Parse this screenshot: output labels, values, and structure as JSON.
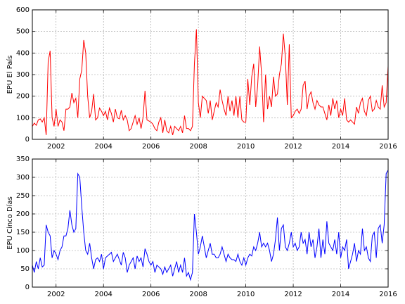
{
  "chart_data": [
    {
      "type": "line",
      "ylabel": "EPU El País",
      "xlim": [
        2001,
        2016
      ],
      "xticks": [
        2002,
        2004,
        2006,
        2008,
        2010,
        2012,
        2014,
        2016
      ],
      "ylim": [
        0,
        600
      ],
      "yticks": [
        0,
        100,
        200,
        300,
        400,
        500,
        600
      ],
      "grid": true,
      "x": [
        2001,
        2001.083,
        2001.167,
        2001.25,
        2001.333,
        2001.417,
        2001.5,
        2001.583,
        2001.667,
        2001.75,
        2001.833,
        2001.917,
        2002,
        2002.083,
        2002.167,
        2002.25,
        2002.333,
        2002.417,
        2002.5,
        2002.583,
        2002.667,
        2002.75,
        2002.833,
        2002.917,
        2003,
        2003.083,
        2003.167,
        2003.25,
        2003.333,
        2003.417,
        2003.5,
        2003.583,
        2003.667,
        2003.75,
        2003.833,
        2003.917,
        2004,
        2004.083,
        2004.167,
        2004.25,
        2004.333,
        2004.417,
        2004.5,
        2004.583,
        2004.667,
        2004.75,
        2004.833,
        2004.917,
        2005,
        2005.083,
        2005.167,
        2005.25,
        2005.333,
        2005.417,
        2005.5,
        2005.583,
        2005.667,
        2005.75,
        2005.833,
        2005.917,
        2006,
        2006.083,
        2006.167,
        2006.25,
        2006.333,
        2006.417,
        2006.5,
        2006.583,
        2006.667,
        2006.75,
        2006.833,
        2006.917,
        2007,
        2007.083,
        2007.167,
        2007.25,
        2007.333,
        2007.417,
        2007.5,
        2007.583,
        2007.667,
        2007.75,
        2007.833,
        2007.917,
        2008,
        2008.083,
        2008.167,
        2008.25,
        2008.333,
        2008.417,
        2008.5,
        2008.583,
        2008.667,
        2008.75,
        2008.833,
        2008.917,
        2009,
        2009.083,
        2009.167,
        2009.25,
        2009.333,
        2009.417,
        2009.5,
        2009.583,
        2009.667,
        2009.75,
        2009.833,
        2009.917,
        2010,
        2010.083,
        2010.167,
        2010.25,
        2010.333,
        2010.417,
        2010.5,
        2010.583,
        2010.667,
        2010.75,
        2010.833,
        2010.917,
        2011,
        2011.083,
        2011.167,
        2011.25,
        2011.333,
        2011.417,
        2011.5,
        2011.583,
        2011.667,
        2011.75,
        2011.833,
        2011.917,
        2012,
        2012.083,
        2012.167,
        2012.25,
        2012.333,
        2012.417,
        2012.5,
        2012.583,
        2012.667,
        2012.75,
        2012.833,
        2012.917,
        2013,
        2013.083,
        2013.167,
        2013.25,
        2013.333,
        2013.417,
        2013.5,
        2013.583,
        2013.667,
        2013.75,
        2013.833,
        2013.917,
        2014,
        2014.083,
        2014.167,
        2014.25,
        2014.333,
        2014.417,
        2014.5,
        2014.583,
        2014.667,
        2014.75,
        2014.833,
        2014.917,
        2015,
        2015.083,
        2015.167,
        2015.25,
        2015.333,
        2015.417,
        2015.5,
        2015.583,
        2015.667,
        2015.75,
        2015.833,
        2015.917,
        2016
      ],
      "series": [
        {
          "color": "#ff0000",
          "values": [
            60,
            75,
            65,
            90,
            95,
            80,
            100,
            20,
            360,
            410,
            100,
            60,
            140,
            60,
            90,
            80,
            40,
            140,
            140,
            150,
            215,
            170,
            190,
            100,
            280,
            320,
            460,
            400,
            200,
            100,
            130,
            210,
            90,
            100,
            145,
            130,
            110,
            130,
            90,
            145,
            120,
            80,
            140,
            100,
            95,
            135,
            90,
            110,
            90,
            40,
            50,
            80,
            110,
            70,
            100,
            50,
            100,
            225,
            90,
            85,
            80,
            70,
            50,
            40,
            80,
            100,
            30,
            90,
            40,
            30,
            60,
            20,
            60,
            50,
            40,
            60,
            30,
            110,
            50,
            50,
            40,
            60,
            350,
            510,
            170,
            100,
            200,
            190,
            180,
            120,
            180,
            90,
            130,
            170,
            150,
            230,
            180,
            140,
            110,
            200,
            130,
            180,
            110,
            200,
            100,
            200,
            90,
            80,
            80,
            280,
            160,
            290,
            350,
            150,
            250,
            430,
            300,
            80,
            300,
            140,
            200,
            150,
            290,
            200,
            210,
            300,
            350,
            490,
            380,
            160,
            440,
            100,
            110,
            130,
            140,
            120,
            140,
            250,
            270,
            140,
            200,
            220,
            170,
            140,
            180,
            160,
            150,
            150,
            120,
            90,
            160,
            110,
            190,
            140,
            180,
            100,
            140,
            110,
            190,
            90,
            80,
            90,
            80,
            70,
            150,
            120,
            170,
            190,
            130,
            110,
            180,
            200,
            130,
            140,
            180,
            150,
            140,
            250,
            150,
            170,
            340
          ]
        }
      ]
    },
    {
      "type": "line",
      "ylabel": "EPU Cinco Días",
      "xlim": [
        2001,
        2016
      ],
      "xticks": [
        2002,
        2004,
        2006,
        2008,
        2010,
        2012,
        2014,
        2016
      ],
      "ylim": [
        0,
        350
      ],
      "yticks": [
        0,
        50,
        100,
        150,
        200,
        250,
        300,
        350
      ],
      "grid": true,
      "x": [
        2001,
        2001.083,
        2001.167,
        2001.25,
        2001.333,
        2001.417,
        2001.5,
        2001.583,
        2001.667,
        2001.75,
        2001.833,
        2001.917,
        2002,
        2002.083,
        2002.167,
        2002.25,
        2002.333,
        2002.417,
        2002.5,
        2002.583,
        2002.667,
        2002.75,
        2002.833,
        2002.917,
        2003,
        2003.083,
        2003.167,
        2003.25,
        2003.333,
        2003.417,
        2003.5,
        2003.583,
        2003.667,
        2003.75,
        2003.833,
        2003.917,
        2004,
        2004.083,
        2004.167,
        2004.25,
        2004.333,
        2004.417,
        2004.5,
        2004.583,
        2004.667,
        2004.75,
        2004.833,
        2004.917,
        2005,
        2005.083,
        2005.167,
        2005.25,
        2005.333,
        2005.417,
        2005.5,
        2005.583,
        2005.667,
        2005.75,
        2005.833,
        2005.917,
        2006,
        2006.083,
        2006.167,
        2006.25,
        2006.333,
        2006.417,
        2006.5,
        2006.583,
        2006.667,
        2006.75,
        2006.833,
        2006.917,
        2007,
        2007.083,
        2007.167,
        2007.25,
        2007.333,
        2007.417,
        2007.5,
        2007.583,
        2007.667,
        2007.75,
        2007.833,
        2007.917,
        2008,
        2008.083,
        2008.167,
        2008.25,
        2008.333,
        2008.417,
        2008.5,
        2008.583,
        2008.667,
        2008.75,
        2008.833,
        2008.917,
        2009,
        2009.083,
        2009.167,
        2009.25,
        2009.333,
        2009.417,
        2009.5,
        2009.583,
        2009.667,
        2009.75,
        2009.833,
        2009.917,
        2010,
        2010.083,
        2010.167,
        2010.25,
        2010.333,
        2010.417,
        2010.5,
        2010.583,
        2010.667,
        2010.75,
        2010.833,
        2010.917,
        2011,
        2011.083,
        2011.167,
        2011.25,
        2011.333,
        2011.417,
        2011.5,
        2011.583,
        2011.667,
        2011.75,
        2011.833,
        2011.917,
        2012,
        2012.083,
        2012.167,
        2012.25,
        2012.333,
        2012.417,
        2012.5,
        2012.583,
        2012.667,
        2012.75,
        2012.833,
        2012.917,
        2013,
        2013.083,
        2013.167,
        2013.25,
        2013.333,
        2013.417,
        2013.5,
        2013.583,
        2013.667,
        2013.75,
        2013.833,
        2013.917,
        2014,
        2014.083,
        2014.167,
        2014.25,
        2014.333,
        2014.417,
        2014.5,
        2014.583,
        2014.667,
        2014.75,
        2014.833,
        2014.917,
        2015,
        2015.083,
        2015.167,
        2015.25,
        2015.333,
        2015.417,
        2015.5,
        2015.583,
        2015.667,
        2015.75,
        2015.833,
        2015.917,
        2016
      ],
      "series": [
        {
          "color": "#0000ff",
          "values": [
            60,
            40,
            70,
            50,
            80,
            55,
            60,
            170,
            150,
            140,
            80,
            100,
            90,
            75,
            100,
            110,
            140,
            140,
            160,
            210,
            170,
            150,
            160,
            310,
            300,
            220,
            150,
            100,
            90,
            120,
            80,
            50,
            75,
            80,
            70,
            90,
            50,
            80,
            85,
            90,
            95,
            70,
            80,
            90,
            75,
            60,
            95,
            80,
            40,
            60,
            70,
            80,
            50,
            85,
            70,
            80,
            55,
            105,
            90,
            70,
            60,
            70,
            40,
            60,
            55,
            50,
            35,
            55,
            40,
            50,
            60,
            30,
            50,
            70,
            40,
            60,
            40,
            80,
            30,
            40,
            20,
            40,
            200,
            150,
            90,
            110,
            140,
            110,
            80,
            100,
            120,
            90,
            90,
            80,
            80,
            90,
            110,
            90,
            70,
            90,
            80,
            75,
            75,
            70,
            90,
            70,
            60,
            80,
            60,
            80,
            90,
            85,
            110,
            100,
            120,
            150,
            110,
            120,
            110,
            120,
            100,
            70,
            90,
            130,
            190,
            100,
            160,
            170,
            110,
            100,
            120,
            150,
            110,
            120,
            100,
            110,
            150,
            120,
            130,
            90,
            150,
            110,
            130,
            80,
            110,
            160,
            80,
            130,
            90,
            180,
            120,
            110,
            100,
            130,
            90,
            150,
            80,
            110,
            100,
            130,
            50,
            70,
            90,
            120,
            70,
            100,
            90,
            160,
            100,
            110,
            80,
            70,
            140,
            150,
            80,
            160,
            170,
            120,
            170,
            310,
            320
          ]
        }
      ]
    }
  ]
}
